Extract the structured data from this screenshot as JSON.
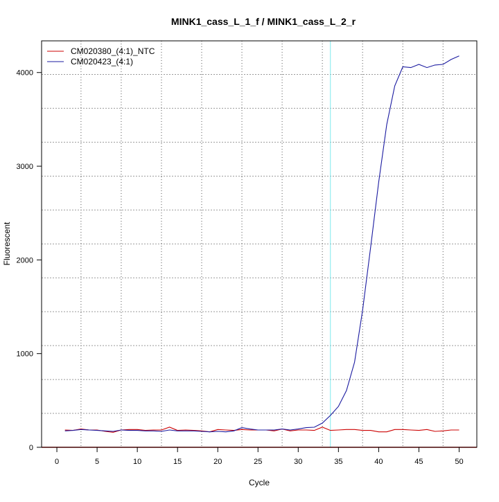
{
  "chart_data": {
    "type": "line",
    "title": "MINK1_cass_L_1_f / MINK1_cass_L_2_r",
    "xlabel": "Cycle",
    "ylabel": "Fluorescent",
    "xlim": [
      -1.9,
      52.2
    ],
    "ylim": [
      0,
      4338
    ],
    "xticks": [
      0,
      5,
      10,
      15,
      20,
      25,
      30,
      35,
      40,
      45,
      50
    ],
    "yticks": [
      0,
      1000,
      2000,
      3000,
      4000
    ],
    "grid": true,
    "legend_position": "top-left",
    "threshold_cycle": 34,
    "threshold_color": "#7fe8ee",
    "baseline_color": "#cc0000",
    "series": [
      {
        "name": "CM020380_(4:1)_NTC",
        "color": "#cc0000",
        "x": [
          1,
          2,
          3,
          4,
          5,
          6,
          7,
          8,
          9,
          10,
          11,
          12,
          13,
          14,
          15,
          16,
          17,
          18,
          19,
          20,
          21,
          22,
          23,
          24,
          25,
          26,
          27,
          28,
          29,
          30,
          31,
          32,
          33,
          34,
          35,
          36,
          37,
          38,
          39,
          40,
          41,
          42,
          43,
          44,
          45,
          46,
          47,
          48,
          49,
          50
        ],
        "values": [
          185,
          180,
          195,
          185,
          185,
          170,
          160,
          185,
          190,
          190,
          180,
          185,
          185,
          215,
          180,
          185,
          180,
          175,
          165,
          190,
          185,
          180,
          190,
          185,
          185,
          185,
          175,
          195,
          175,
          185,
          185,
          180,
          215,
          180,
          185,
          190,
          190,
          180,
          180,
          165,
          165,
          190,
          190,
          185,
          180,
          190,
          170,
          175,
          185,
          185
        ]
      },
      {
        "name": "CM020423_(4:1)",
        "color": "#1a1aa0",
        "x": [
          1,
          2,
          3,
          4,
          5,
          6,
          7,
          8,
          9,
          10,
          11,
          12,
          13,
          14,
          15,
          16,
          17,
          18,
          19,
          20,
          21,
          22,
          23,
          24,
          25,
          26,
          27,
          28,
          29,
          30,
          31,
          32,
          33,
          34,
          35,
          36,
          37,
          38,
          39,
          40,
          41,
          42,
          43,
          44,
          45,
          46,
          47,
          48,
          49,
          50
        ],
        "values": [
          175,
          180,
          190,
          185,
          180,
          175,
          170,
          185,
          180,
          180,
          175,
          175,
          170,
          185,
          175,
          175,
          175,
          170,
          165,
          170,
          165,
          175,
          210,
          195,
          185,
          185,
          185,
          195,
          185,
          195,
          210,
          214,
          259,
          340,
          436,
          606,
          909,
          1463,
          2136,
          2830,
          3444,
          3858,
          4061,
          4053,
          4087,
          4053,
          4080,
          4087,
          4139,
          4178
        ]
      }
    ]
  }
}
